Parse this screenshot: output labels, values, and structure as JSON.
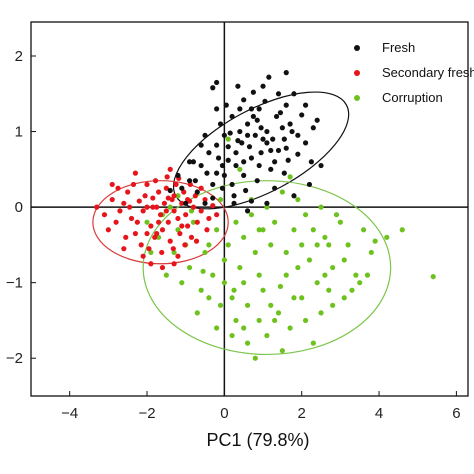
{
  "chart_data": {
    "type": "scatter",
    "title": "",
    "xlabel": "PC1 (79.8%)",
    "ylabel": "",
    "xlim": [
      -5,
      6.3
    ],
    "ylim": [
      -2.5,
      2.45
    ],
    "x_ticks": [
      {
        "value": -4,
        "label": "−4"
      },
      {
        "value": -2,
        "label": "−2"
      },
      {
        "value": 0,
        "label": "0"
      },
      {
        "value": 2,
        "label": "2"
      },
      {
        "value": 4,
        "label": "4"
      },
      {
        "value": 6,
        "label": "6"
      }
    ],
    "y_ticks": [
      {
        "value": -2,
        "label": "−2"
      },
      {
        "value": -1,
        "label": "−1"
      },
      {
        "value": 0,
        "label": "0"
      },
      {
        "value": 1,
        "label": "1"
      },
      {
        "value": 2,
        "label": "2"
      }
    ],
    "grid": false,
    "zero_lines": true,
    "legend_position": "top-right",
    "series": [
      {
        "name": "Fresh",
        "color": "#111111",
        "ellipse": {
          "cx": 0.95,
          "cy": 0.75,
          "rx": 2.5,
          "ry": 0.55,
          "angle_deg": 28,
          "color": "#111111"
        },
        "points": [
          [
            -0.2,
            0.45
          ],
          [
            0.1,
            0.62
          ],
          [
            0.45,
            0.85
          ],
          [
            0.8,
            0.95
          ],
          [
            1.1,
            1.0
          ],
          [
            1.35,
            1.2
          ],
          [
            0.6,
            1.1
          ],
          [
            0.9,
            1.3
          ],
          [
            1.5,
            1.05
          ],
          [
            1.7,
            1.1
          ],
          [
            1.9,
            0.95
          ],
          [
            1.2,
            0.75
          ],
          [
            0.7,
            0.65
          ],
          [
            0.3,
            0.72
          ],
          [
            0.0,
            0.95
          ],
          [
            -0.4,
            0.72
          ],
          [
            -0.6,
            0.55
          ],
          [
            -0.9,
            0.35
          ],
          [
            -1.1,
            0.25
          ],
          [
            -0.7,
            0.2
          ],
          [
            -0.3,
            0.12
          ],
          [
            0.2,
            0.3
          ],
          [
            0.5,
            0.42
          ],
          [
            0.9,
            0.55
          ],
          [
            1.3,
            0.6
          ],
          [
            1.6,
            0.78
          ],
          [
            2.0,
            1.22
          ],
          [
            1.8,
            1.5
          ],
          [
            1.4,
            1.5
          ],
          [
            1.0,
            1.6
          ],
          [
            0.5,
            1.42
          ],
          [
            0.2,
            1.2
          ],
          [
            -0.1,
            1.1
          ],
          [
            0.4,
            1.0
          ],
          [
            0.75,
            1.2
          ],
          [
            1.05,
            1.4
          ],
          [
            1.25,
            0.9
          ],
          [
            1.55,
            0.9
          ],
          [
            1.1,
            0.85
          ],
          [
            0.65,
            0.8
          ],
          [
            0.3,
            0.55
          ],
          [
            -0.2,
            0.82
          ],
          [
            -0.5,
            0.95
          ],
          [
            -0.8,
            0.6
          ],
          [
            -0.3,
            0.3
          ],
          [
            0.0,
            0.42
          ],
          [
            0.55,
            0.22
          ],
          [
            0.85,
            0.35
          ],
          [
            1.2,
            0.5
          ],
          [
            1.65,
            0.62
          ],
          [
            2.1,
            0.85
          ],
          [
            2.3,
            1.05
          ],
          [
            2.1,
            1.35
          ],
          [
            1.6,
            1.35
          ],
          [
            0.95,
            1.05
          ],
          [
            0.6,
            0.95
          ],
          [
            0.35,
            0.88
          ],
          [
            0.1,
            0.8
          ],
          [
            -0.15,
            0.65
          ],
          [
            -0.45,
            0.45
          ],
          [
            -0.9,
            0.6
          ],
          [
            -1.2,
            0.42
          ],
          [
            -1.4,
            0.22
          ],
          [
            -0.6,
            0.82
          ],
          [
            -0.2,
            1.3
          ],
          [
            -0.3,
            1.58
          ],
          [
            -0.2,
            1.65
          ],
          [
            0.35,
            1.6
          ],
          [
            0.75,
            1.52
          ],
          [
            1.15,
            1.72
          ],
          [
            1.6,
            1.78
          ],
          [
            2.4,
            1.15
          ],
          [
            2.5,
            0.55
          ],
          [
            2.2,
            0.3
          ],
          [
            1.8,
            0.15
          ],
          [
            1.3,
            0.25
          ],
          [
            0.7,
            0.08
          ],
          [
            0.25,
            0.05
          ],
          [
            0.6,
            -0.05
          ],
          [
            1.1,
            0.05
          ],
          [
            1.55,
            0.45
          ],
          [
            0.95,
            0.72
          ],
          [
            0.4,
            1.3
          ],
          [
            0.15,
            0.98
          ],
          [
            -0.05,
            0.55
          ],
          [
            0.25,
            0.15
          ],
          [
            1.75,
            1.0
          ],
          [
            1.45,
            1.25
          ],
          [
            0.85,
            1.15
          ],
          [
            -0.75,
            0.35
          ],
          [
            -1.0,
            0.05
          ],
          [
            -0.5,
            0.05
          ],
          [
            -0.05,
            0.25
          ],
          [
            0.5,
            0.6
          ],
          [
            1.0,
            0.9
          ],
          [
            1.4,
            0.75
          ],
          [
            1.9,
            0.7
          ],
          [
            2.25,
            0.6
          ],
          [
            0.05,
            1.35
          ],
          [
            0.7,
            1.3
          ]
        ]
      },
      {
        "name": "Secondary fresh",
        "color": "#e8141c",
        "ellipse": {
          "cx": -1.65,
          "cy": -0.2,
          "rx": 1.75,
          "ry": 0.55,
          "angle_deg": 0,
          "color": "#d93a3a"
        },
        "points": [
          [
            -3.3,
            0.0
          ],
          [
            -3.1,
            -0.1
          ],
          [
            -2.9,
            0.1
          ],
          [
            -2.8,
            -0.2
          ],
          [
            -2.6,
            0.05
          ],
          [
            -2.5,
            0.2
          ],
          [
            -2.4,
            -0.15
          ],
          [
            -2.3,
            -0.35
          ],
          [
            -2.2,
            0.08
          ],
          [
            -2.1,
            -0.05
          ],
          [
            -2.0,
            0.3
          ],
          [
            -1.9,
            -0.25
          ],
          [
            -1.85,
            0.12
          ],
          [
            -1.8,
            -0.4
          ],
          [
            -1.75,
            0.0
          ],
          [
            -1.7,
            0.2
          ],
          [
            -1.65,
            -0.1
          ],
          [
            -1.6,
            -0.3
          ],
          [
            -1.55,
            0.05
          ],
          [
            -1.5,
            0.25
          ],
          [
            -1.45,
            -0.2
          ],
          [
            -1.4,
            -0.45
          ],
          [
            -1.35,
            0.1
          ],
          [
            -1.3,
            -0.05
          ],
          [
            -1.25,
            0.3
          ],
          [
            -1.2,
            -0.15
          ],
          [
            -1.15,
            -0.35
          ],
          [
            -1.1,
            0.05
          ],
          [
            -1.05,
            0.2
          ],
          [
            -1.0,
            -0.1
          ],
          [
            -0.95,
            -0.25
          ],
          [
            -0.9,
            0.08
          ],
          [
            -0.85,
            -0.4
          ],
          [
            -0.8,
            0.0
          ],
          [
            -0.75,
            0.15
          ],
          [
            -0.7,
            -0.2
          ],
          [
            -0.6,
            -0.05
          ],
          [
            -0.5,
            0.1
          ],
          [
            -0.4,
            -0.15
          ],
          [
            -0.3,
            0.02
          ],
          [
            -3.0,
            -0.3
          ],
          [
            -2.75,
            0.25
          ],
          [
            -2.55,
            -0.4
          ],
          [
            -2.35,
            0.3
          ],
          [
            -2.15,
            -0.5
          ],
          [
            -2.05,
            0.15
          ],
          [
            -1.95,
            -0.55
          ],
          [
            -1.78,
            0.35
          ],
          [
            -1.62,
            -0.6
          ],
          [
            -1.48,
            0.4
          ],
          [
            -1.32,
            -0.55
          ],
          [
            -1.18,
            0.38
          ],
          [
            -1.02,
            -0.5
          ],
          [
            -0.88,
            0.3
          ],
          [
            -0.72,
            -0.45
          ],
          [
            -2.7,
            -0.05
          ],
          [
            -2.45,
            0.0
          ],
          [
            -2.25,
            -0.2
          ],
          [
            -2.0,
            0.0
          ],
          [
            -1.7,
            -0.2
          ],
          [
            -1.5,
            -0.05
          ],
          [
            -1.3,
            0.15
          ],
          [
            -1.1,
            -0.25
          ],
          [
            -0.95,
            0.1
          ],
          [
            -1.6,
            -0.8
          ],
          [
            -1.9,
            -0.75
          ],
          [
            -1.3,
            -0.75
          ],
          [
            -2.1,
            -0.65
          ],
          [
            -0.6,
            0.25
          ],
          [
            -2.9,
            0.3
          ],
          [
            -2.6,
            -0.55
          ],
          [
            -2.3,
            0.45
          ],
          [
            -1.4,
            0.5
          ],
          [
            -1.2,
            -0.65
          ],
          [
            -0.45,
            -0.3
          ],
          [
            -0.2,
            -0.1
          ],
          [
            -1.75,
            -0.35
          ],
          [
            -2.0,
            -0.35
          ],
          [
            -1.45,
            0.12
          ],
          [
            -1.85,
            0.0
          ]
        ]
      },
      {
        "name": "Corruption",
        "color": "#6ec21e",
        "ellipse": {
          "cx": 1.1,
          "cy": -0.8,
          "rx": 3.2,
          "ry": 1.15,
          "angle_deg": 0,
          "color": "#7cc54a"
        },
        "points": [
          [
            -2.0,
            -0.2
          ],
          [
            -1.7,
            -0.4
          ],
          [
            -1.6,
            -0.1
          ],
          [
            -1.4,
            0.0
          ],
          [
            -1.2,
            -0.3
          ],
          [
            -1.0,
            -0.5
          ],
          [
            -0.8,
            -0.2
          ],
          [
            -0.5,
            -0.6
          ],
          [
            -0.3,
            -0.9
          ],
          [
            0.0,
            -1.0
          ],
          [
            0.2,
            -1.2
          ],
          [
            0.4,
            -0.8
          ],
          [
            0.6,
            -1.3
          ],
          [
            0.8,
            -0.6
          ],
          [
            1.0,
            -1.1
          ],
          [
            1.2,
            -0.5
          ],
          [
            1.4,
            -1.4
          ],
          [
            1.6,
            -0.9
          ],
          [
            1.8,
            -0.3
          ],
          [
            2.0,
            -1.2
          ],
          [
            2.2,
            -0.7
          ],
          [
            2.4,
            -1.0
          ],
          [
            2.6,
            -0.4
          ],
          [
            2.8,
            -0.8
          ],
          [
            3.0,
            -0.2
          ],
          [
            3.2,
            -0.5
          ],
          [
            3.4,
            -0.9
          ],
          [
            3.6,
            -0.3
          ],
          [
            3.8,
            -0.6
          ],
          [
            4.2,
            -0.4
          ],
          [
            4.6,
            -0.3
          ],
          [
            5.4,
            -0.92
          ],
          [
            -0.2,
            -0.3
          ],
          [
            0.1,
            -0.5
          ],
          [
            0.3,
            -0.2
          ],
          [
            0.5,
            -0.4
          ],
          [
            0.7,
            -0.1
          ],
          [
            0.9,
            -0.3
          ],
          [
            1.1,
            0.0
          ],
          [
            1.3,
            -0.2
          ],
          [
            1.5,
            0.2
          ],
          [
            1.7,
            0.4
          ],
          [
            1.9,
            0.1
          ],
          [
            2.1,
            -0.1
          ],
          [
            2.3,
            -0.3
          ],
          [
            2.5,
            0.0
          ],
          [
            2.7,
            -0.5
          ],
          [
            2.9,
            -0.1
          ],
          [
            3.1,
            -0.7
          ],
          [
            3.3,
            -1.1
          ],
          [
            -1.5,
            -0.9
          ],
          [
            -1.1,
            -1.0
          ],
          [
            -0.9,
            -0.8
          ],
          [
            -0.6,
            -1.1
          ],
          [
            -0.1,
            -1.3
          ],
          [
            0.3,
            -1.5
          ],
          [
            0.5,
            -1.6
          ],
          [
            0.9,
            -1.5
          ],
          [
            1.1,
            -1.7
          ],
          [
            1.3,
            -1.5
          ],
          [
            1.5,
            -1.9
          ],
          [
            1.7,
            -1.6
          ],
          [
            2.1,
            -1.5
          ],
          [
            2.5,
            -1.4
          ],
          [
            2.7,
            -1.1
          ],
          [
            3.1,
            -1.2
          ],
          [
            3.5,
            -1.0
          ],
          [
            0.6,
            -1.8
          ],
          [
            0.2,
            -1.7
          ],
          [
            -0.2,
            -1.6
          ],
          [
            -0.4,
            -1.2
          ],
          [
            -0.7,
            -1.4
          ],
          [
            0.8,
            -2.0
          ],
          [
            1.8,
            -1.2
          ],
          [
            2.3,
            -1.8
          ],
          [
            0.0,
            -0.7
          ],
          [
            -0.4,
            -0.5
          ],
          [
            0.9,
            -0.9
          ],
          [
            1.2,
            -1.3
          ],
          [
            1.6,
            -0.6
          ],
          [
            2.0,
            -0.5
          ],
          [
            2.4,
            -0.5
          ],
          [
            2.8,
            -1.3
          ],
          [
            3.7,
            -0.9
          ],
          [
            -1.3,
            -0.6
          ],
          [
            -0.1,
            0.1
          ],
          [
            0.4,
            0.5
          ],
          [
            0.7,
            0.1
          ],
          [
            -1.9,
            -0.6
          ],
          [
            0.1,
            0.9
          ],
          [
            0.5,
            -1.0
          ],
          [
            1.0,
            -0.3
          ],
          [
            1.9,
            -0.8
          ],
          [
            2.6,
            -0.9
          ],
          [
            -1.2,
            0.15
          ],
          [
            -0.85,
            -0.05
          ],
          [
            0.25,
            -1.1
          ],
          [
            1.45,
            -1.05
          ],
          [
            3.9,
            -0.45
          ],
          [
            -0.55,
            -0.85
          ]
        ]
      }
    ]
  }
}
